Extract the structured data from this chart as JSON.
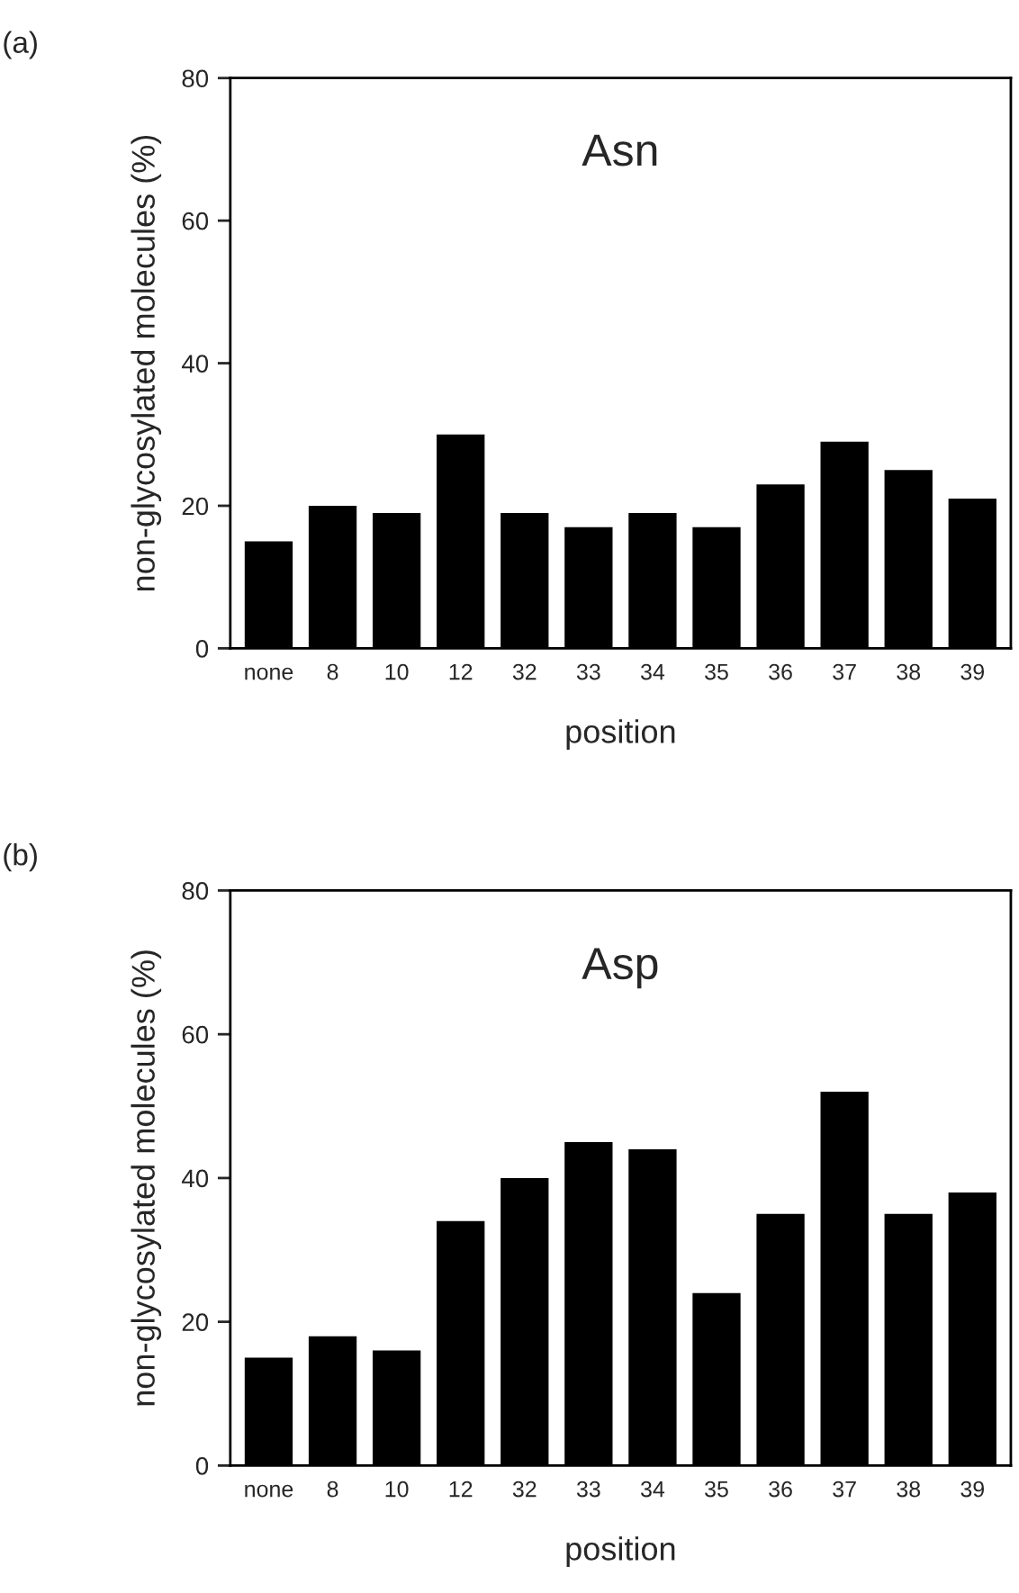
{
  "chart_data": [
    {
      "type": "bar",
      "title": "Asn",
      "xlabel": "position",
      "ylabel": "non-glycosylated molecules (%)",
      "annotations": [
        "(a)"
      ],
      "categories": [
        "none",
        "8",
        "10",
        "12",
        "32",
        "33",
        "34",
        "35",
        "36",
        "37",
        "38",
        "39"
      ],
      "values": [
        15,
        20,
        19,
        30,
        19,
        17,
        19,
        17,
        23,
        29,
        25,
        21
      ],
      "color": "#000000",
      "ylim": [
        0,
        80
      ],
      "yticks": [
        0,
        20,
        40,
        60,
        80
      ],
      "grid": false,
      "legend": false
    },
    {
      "type": "bar",
      "title": "Asp",
      "xlabel": "position",
      "ylabel": "non-glycosylated molecules (%)",
      "annotations": [
        "(b)"
      ],
      "categories": [
        "none",
        "8",
        "10",
        "12",
        "32",
        "33",
        "34",
        "35",
        "36",
        "37",
        "38",
        "39"
      ],
      "values": [
        15,
        18,
        16,
        34,
        40,
        45,
        44,
        24,
        35,
        52,
        35,
        38
      ],
      "color": "#000000",
      "ylim": [
        0,
        80
      ],
      "yticks": [
        0,
        20,
        40,
        60,
        80
      ],
      "grid": false,
      "legend": false
    }
  ]
}
